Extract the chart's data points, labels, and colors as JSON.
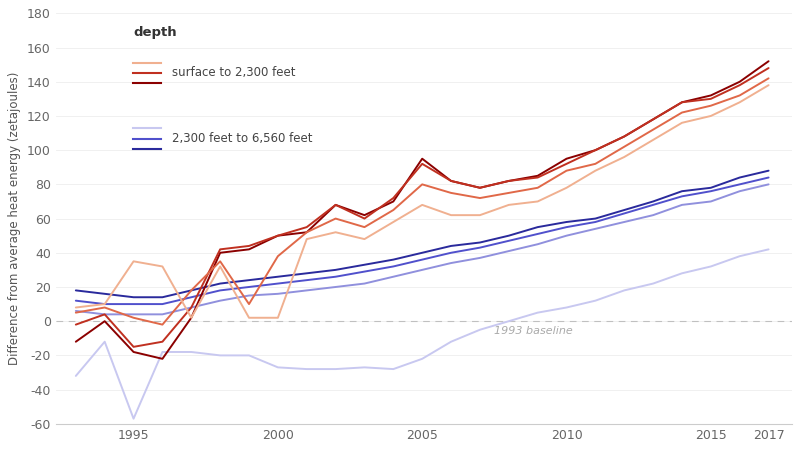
{
  "ylabel": "Difference from average heat energy (zetajoules)",
  "xlim": [
    1992.3,
    2017.8
  ],
  "ylim": [
    -60,
    180
  ],
  "yticks": [
    -60,
    -40,
    -20,
    0,
    20,
    40,
    60,
    80,
    100,
    120,
    140,
    160,
    180
  ],
  "xticks": [
    1995,
    2000,
    2005,
    2010,
    2015
  ],
  "xtick_extra": 2017,
  "baseline_label": "1993 baseline",
  "background_color": "#ffffff",
  "red_series": {
    "colors": [
      "#8B0000",
      "#C03020",
      "#E06848",
      "#F0B090"
    ],
    "years": [
      1993,
      1994,
      1995,
      1996,
      1997,
      1998,
      1999,
      2000,
      2001,
      2002,
      2003,
      2004,
      2005,
      2006,
      2007,
      2008,
      2009,
      2010,
      2011,
      2012,
      2013,
      2014,
      2015,
      2016,
      2017
    ],
    "values": [
      [
        -12,
        0,
        -18,
        -22,
        2,
        40,
        42,
        50,
        52,
        68,
        62,
        70,
        95,
        82,
        78,
        82,
        85,
        95,
        100,
        108,
        118,
        128,
        132,
        140,
        152
      ],
      [
        -2,
        4,
        -15,
        -12,
        8,
        42,
        44,
        50,
        55,
        68,
        60,
        72,
        92,
        82,
        78,
        82,
        84,
        92,
        100,
        108,
        118,
        128,
        130,
        138,
        148
      ],
      [
        5,
        8,
        2,
        -2,
        18,
        35,
        10,
        38,
        52,
        60,
        55,
        65,
        80,
        75,
        72,
        75,
        78,
        88,
        92,
        102,
        112,
        122,
        126,
        132,
        142
      ],
      [
        8,
        10,
        35,
        32,
        2,
        32,
        2,
        2,
        48,
        52,
        48,
        58,
        68,
        62,
        62,
        68,
        70,
        78,
        88,
        96,
        106,
        116,
        120,
        128,
        138
      ]
    ]
  },
  "blue_series": {
    "colors": [
      "#2a2a9c",
      "#5050cc",
      "#9090dd",
      "#c8c8f0"
    ],
    "years": [
      1993,
      1994,
      1995,
      1996,
      1997,
      1998,
      1999,
      2000,
      2001,
      2002,
      2003,
      2004,
      2005,
      2006,
      2007,
      2008,
      2009,
      2010,
      2011,
      2012,
      2013,
      2014,
      2015,
      2016,
      2017
    ],
    "values": [
      [
        18,
        16,
        14,
        14,
        18,
        22,
        24,
        26,
        28,
        30,
        33,
        36,
        40,
        44,
        46,
        50,
        55,
        58,
        60,
        65,
        70,
        76,
        78,
        84,
        88
      ],
      [
        12,
        10,
        10,
        10,
        14,
        18,
        20,
        22,
        24,
        26,
        29,
        32,
        36,
        40,
        43,
        47,
        51,
        55,
        58,
        63,
        68,
        73,
        76,
        80,
        84
      ],
      [
        6,
        4,
        4,
        4,
        8,
        12,
        15,
        16,
        18,
        20,
        22,
        26,
        30,
        34,
        37,
        41,
        45,
        50,
        54,
        58,
        62,
        68,
        70,
        76,
        80
      ],
      [
        -32,
        -12,
        -57,
        -18,
        -18,
        -20,
        -20,
        -27,
        -28,
        -28,
        -27,
        -28,
        -22,
        -12,
        -5,
        0,
        5,
        8,
        12,
        18,
        22,
        28,
        32,
        38,
        42
      ]
    ]
  }
}
